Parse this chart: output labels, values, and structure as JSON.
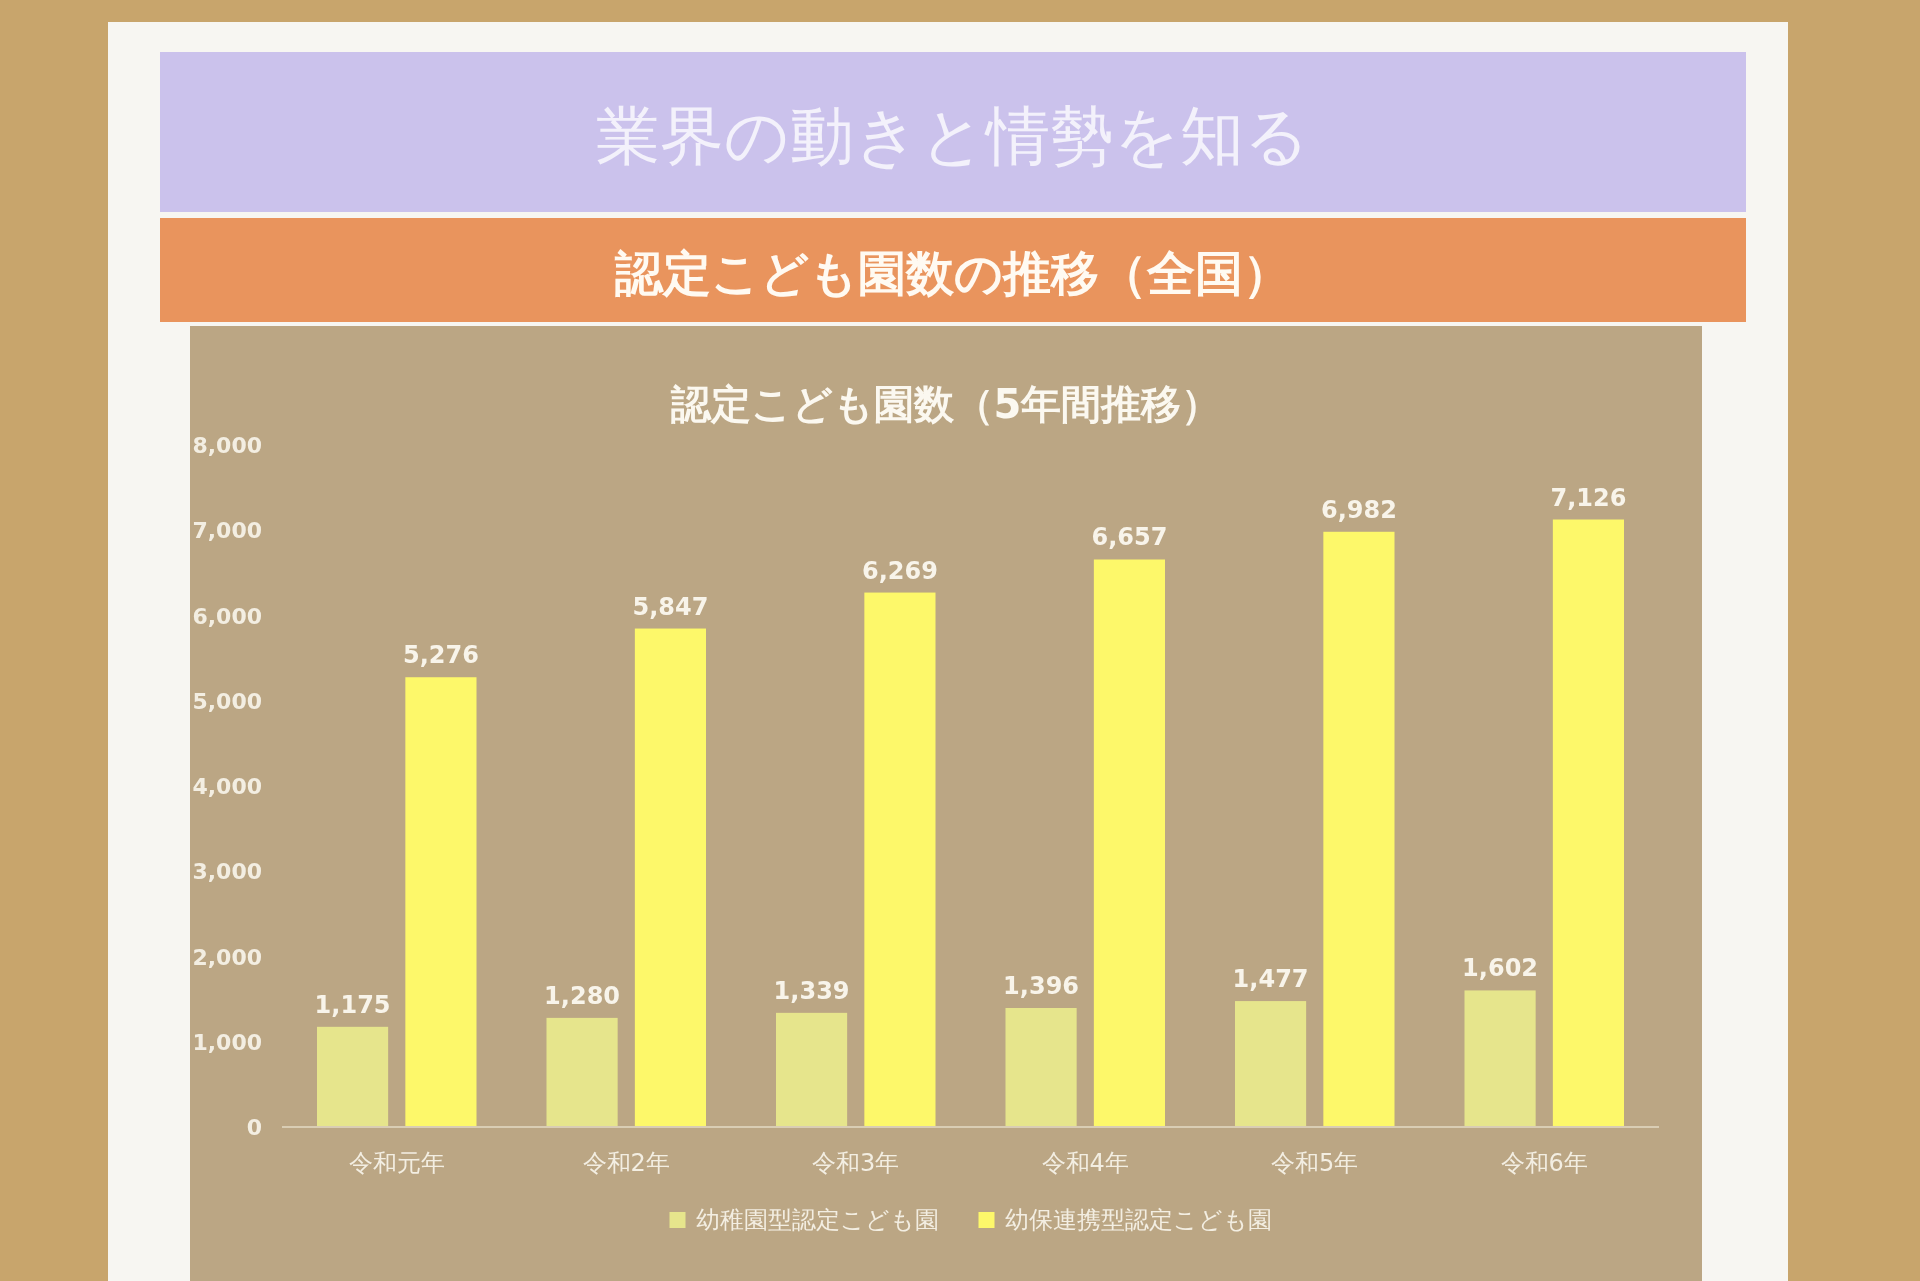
{
  "chart_data": {
    "type": "bar",
    "title": "業界の動きと情勢を知る",
    "subtitle": "認定こども園数の推移（全国）",
    "annotations": [
      "認定こども園数（5年間推移）"
    ],
    "categories": [
      "令和元年",
      "令和2年",
      "令和3年",
      "令和4年",
      "令和5年",
      "令和6年"
    ],
    "series": [
      {
        "name": "幼稚園型認定こども園",
        "color": "#e6e58c",
        "values": [
          1175,
          1280,
          1339,
          1396,
          1477,
          1602
        ],
        "value_labels": [
          "1,175",
          "1,280",
          "1,339",
          "1,396",
          "1,477",
          "1,602"
        ]
      },
      {
        "name": "幼保連携型認定こども園",
        "color": "#fdf86a",
        "values": [
          5276,
          5847,
          6269,
          6657,
          6982,
          7126
        ],
        "value_labels": [
          "5,276",
          "5,847",
          "6,269",
          "6,657",
          "6,982",
          "7,126"
        ]
      }
    ],
    "ylim": [
      0,
      8000
    ],
    "yticks": [
      0,
      {
        "value": 1000,
        "label": "1,000"
      },
      {
        "value": 2000,
        "label": "2,000"
      },
      {
        "value": 3000,
        "label": "3,000"
      },
      {
        "value": 4000,
        "label": "4,000"
      },
      {
        "value": 5000,
        "label": "5,000"
      },
      {
        "value": 6000,
        "label": "6,000"
      },
      {
        "value": 7000,
        "label": "7,000"
      },
      {
        "value": 8000,
        "label": "8,000"
      }
    ],
    "legend": "bottom"
  }
}
